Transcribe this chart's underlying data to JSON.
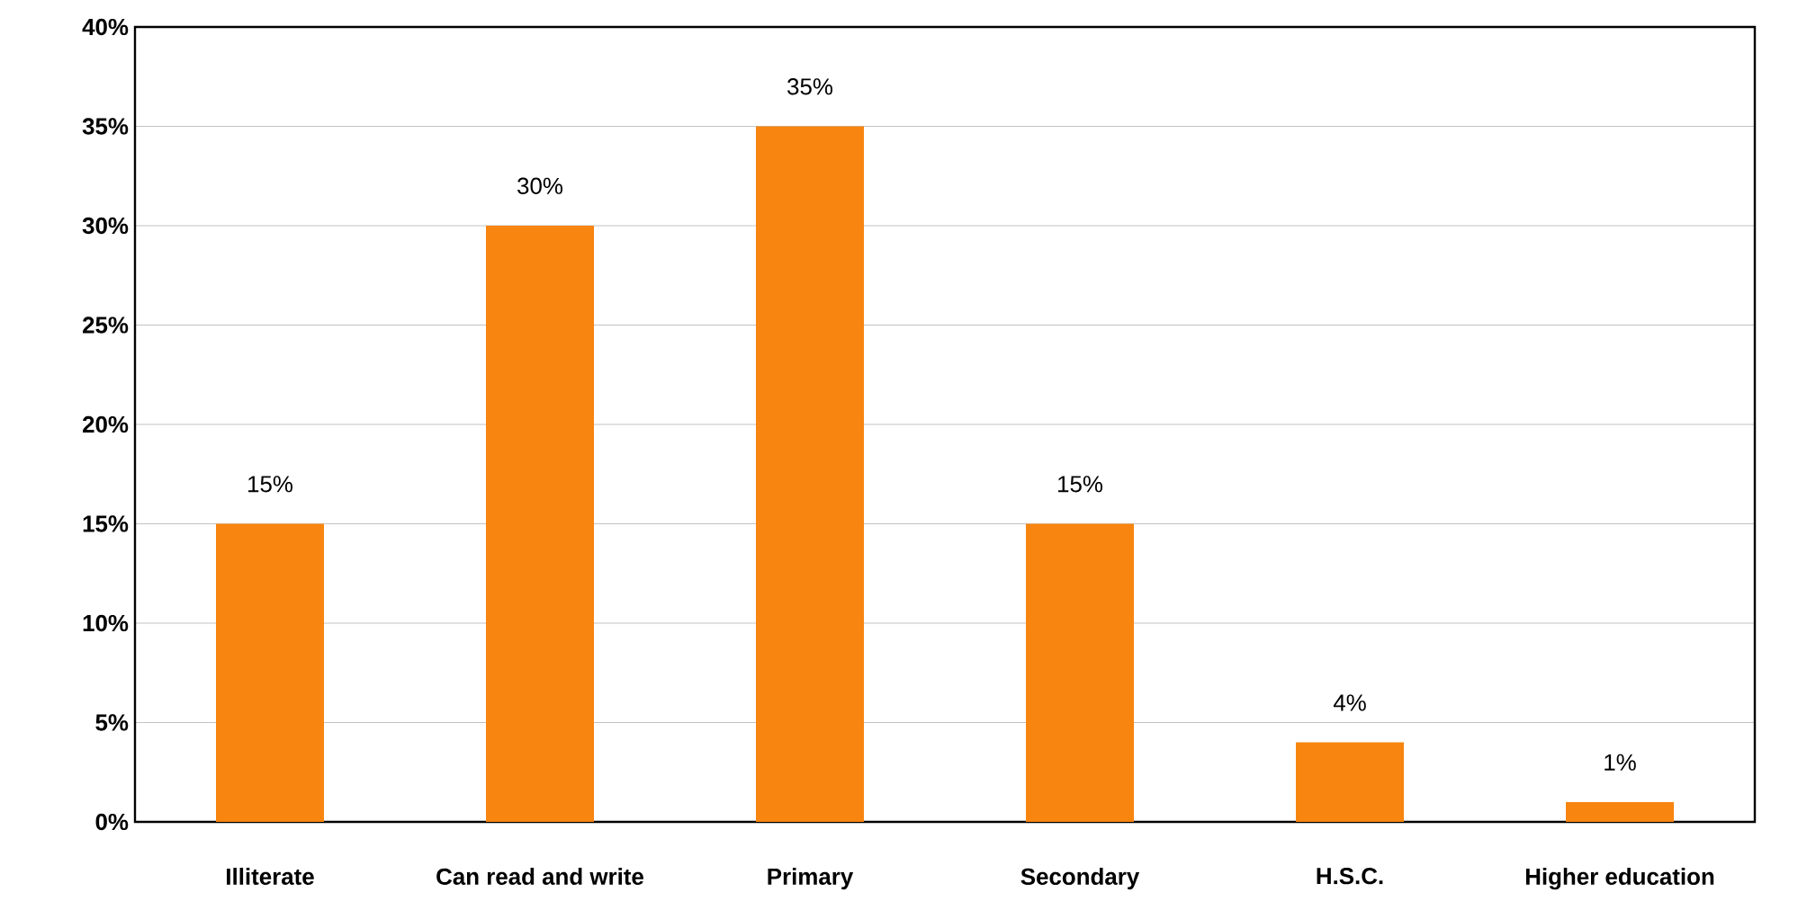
{
  "chart_data": {
    "type": "bar",
    "categories": [
      "Illiterate",
      "Can read and write",
      "Primary",
      "Secondary",
      "H.S.C.",
      "Higher education"
    ],
    "values": [
      15,
      30,
      35,
      15,
      4,
      1
    ],
    "color": "#f7850f",
    "value_labels": [
      "15%",
      "30%",
      "35%",
      "15%",
      "4%",
      "1%"
    ],
    "ylim": [
      0,
      40
    ],
    "yticks": [
      {
        "value": 0,
        "label": "0%"
      },
      {
        "value": 5,
        "label": "5%"
      },
      {
        "value": 10,
        "label": "10%"
      },
      {
        "value": 15,
        "label": "15%"
      },
      {
        "value": 20,
        "label": "20%"
      },
      {
        "value": 25,
        "label": "25%"
      },
      {
        "value": 30,
        "label": "30%"
      },
      {
        "value": 35,
        "label": "35%"
      },
      {
        "value": 40,
        "label": "40%"
      }
    ],
    "grid": "y"
  }
}
